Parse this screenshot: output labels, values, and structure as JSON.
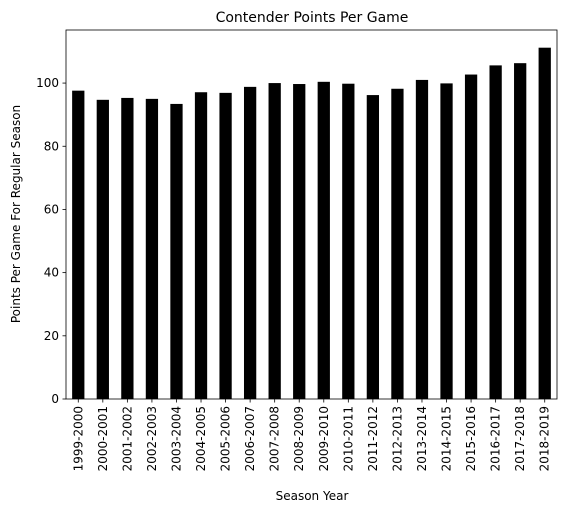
{
  "chart_data": {
    "type": "bar",
    "title": "Contender Points Per Game",
    "xlabel": "Season Year",
    "ylabel": "Points Per Game For Regular Season",
    "categories": [
      "1999-2000",
      "2000-2001",
      "2001-2002",
      "2002-2003",
      "2003-2004",
      "2004-2005",
      "2005-2006",
      "2006-2007",
      "2007-2008",
      "2008-2009",
      "2009-2010",
      "2010-2011",
      "2011-2012",
      "2012-2013",
      "2013-2014",
      "2014-2015",
      "2015-2016",
      "2016-2017",
      "2017-2018",
      "2018-2019"
    ],
    "values": [
      97.6,
      94.7,
      95.3,
      95.0,
      93.4,
      97.1,
      96.9,
      98.8,
      100.0,
      99.7,
      100.4,
      99.8,
      96.2,
      98.2,
      101.0,
      99.9,
      102.7,
      105.6,
      106.3,
      111.2
    ],
    "ylim": [
      0,
      116.8
    ],
    "yticks": [
      0,
      20,
      40,
      60,
      80,
      100
    ],
    "bar_color": "#000000",
    "grid": false,
    "legend": false
  }
}
